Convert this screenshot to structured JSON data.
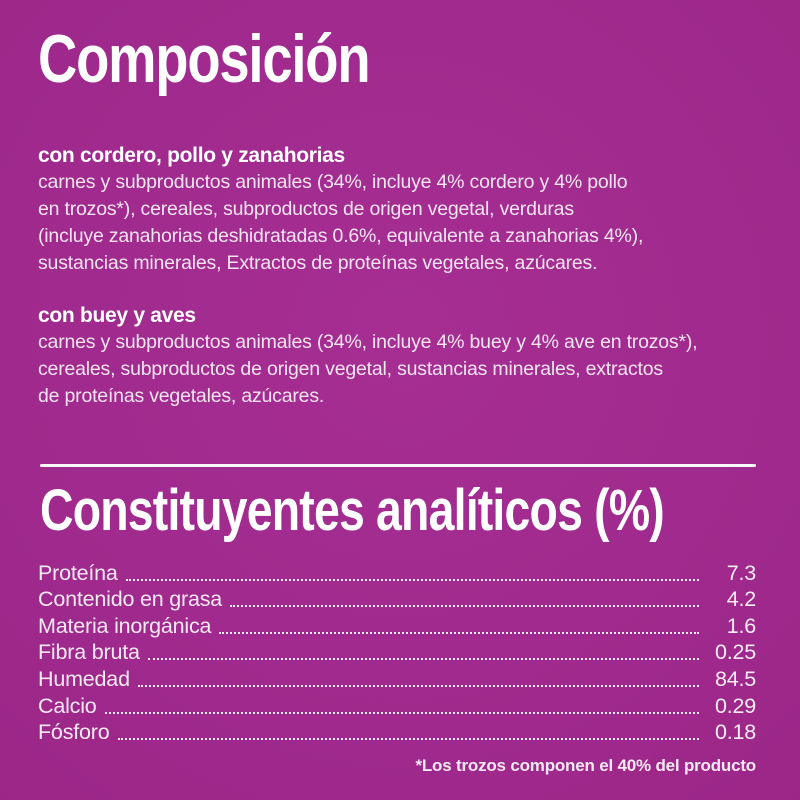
{
  "theme": {
    "background_base": "#9c2789",
    "background_center": "#a62e93",
    "background_edge": "#691960",
    "text_primary": "#ffffff",
    "text_body": "#f4e4f0"
  },
  "composition": {
    "title": "Composición",
    "sections": [
      {
        "heading": "con cordero, pollo y zanahorias",
        "lines": [
          "carnes y subproductos animales (34%, incluye 4% cordero y 4% pollo",
          "en trozos*), cereales, subproductos de origen vegetal, verduras",
          "(incluye zanahorias deshidratadas 0.6%, equivalente a zanahorias 4%),",
          "sustancias minerales, Extractos de proteínas vegetales, azúcares."
        ]
      },
      {
        "heading": "con buey y aves",
        "lines": [
          "carnes y subproductos animales (34%, incluye 4% buey y 4% ave en trozos*),",
          "cereales, subproductos de origen vegetal, sustancias minerales, extractos",
          "de proteínas vegetales, azúcares."
        ]
      }
    ]
  },
  "analytical": {
    "title": "Constituyentes analíticos (%)",
    "rows": [
      {
        "label": "Proteína",
        "value": "7.3"
      },
      {
        "label": "Contenido en grasa",
        "value": "4.2"
      },
      {
        "label": "Materia inorgánica",
        "value": "1.6"
      },
      {
        "label": "Fibra bruta",
        "value": "0.25"
      },
      {
        "label": "Humedad",
        "value": "84.5"
      },
      {
        "label": "Calcio",
        "value": "0.29"
      },
      {
        "label": "Fósforo",
        "value": "0.18"
      }
    ]
  },
  "footnote": "*Los trozos componen el 40% del producto"
}
